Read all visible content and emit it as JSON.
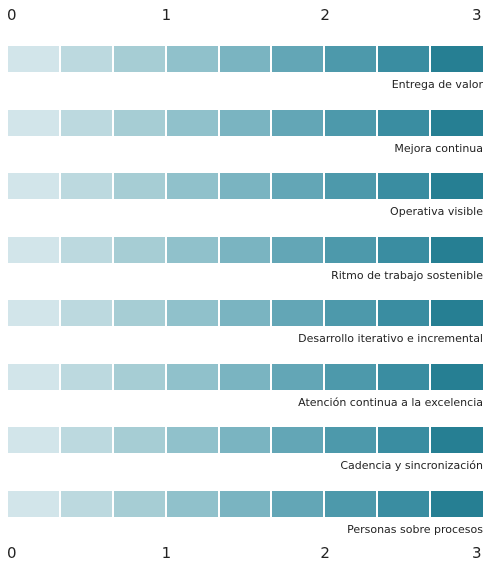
{
  "chart_data": {
    "type": "bar",
    "orientation": "horizontal-stacked-scale",
    "axis_ticks": [
      "0",
      "1",
      "2",
      "3"
    ],
    "xlim": [
      0,
      3
    ],
    "segments_per_bar": 9,
    "colors": [
      "#d2e5ea",
      "#bcd9df",
      "#a6cdd4",
      "#90c1cb",
      "#7ab4c1",
      "#63a6b6",
      "#4d99ab",
      "#3a8da1",
      "#267f93"
    ],
    "categories": [
      "Entrega de valor",
      "Mejora continua",
      "Operativa visible",
      "Ritmo de trabajo sostenible",
      "Desarrollo iterativo e incremental",
      "Atención continua a la excelencia",
      "Cadencia y sincronización",
      "Personas sobre procesos"
    ],
    "values": [
      3,
      3,
      3,
      3,
      3,
      3,
      3,
      3
    ]
  }
}
